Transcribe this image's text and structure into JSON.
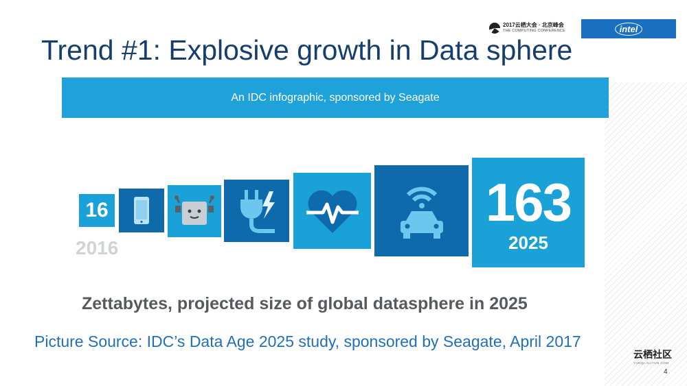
{
  "header": {
    "conference_line1": "2017云栖大会 · 北京峰会",
    "conference_line2": "THE COMPUTING CONFERENCE",
    "sponsor_logo": "intel"
  },
  "slide": {
    "title": "Trend #1: Explosive growth in Data sphere",
    "banner": "An IDC infographic, sponsored by Seagate",
    "start_value": "16",
    "start_year": "2016",
    "end_value": "163",
    "end_year": "2025",
    "caption": "Zettabytes, projected size of global datasphere in 2025",
    "source": "Picture Source: IDC’s Data Age 2025 study, sponsored by Seagate, April 2017",
    "page_number": "4"
  },
  "icons": [
    "phone-icon",
    "robot-icon",
    "plug-lightning-icon",
    "heart-pulse-icon",
    "connected-car-icon"
  ],
  "footer": {
    "community_name": "云栖社区",
    "community_sub": "YUNQI.ALIYUN.COM"
  },
  "colors": {
    "title": "#153e6e",
    "light_blue": "#1aa1d8",
    "dark_blue": "#0f6aab",
    "source_text": "#1f6fb9",
    "intel_blue": "#1a6fc0"
  }
}
